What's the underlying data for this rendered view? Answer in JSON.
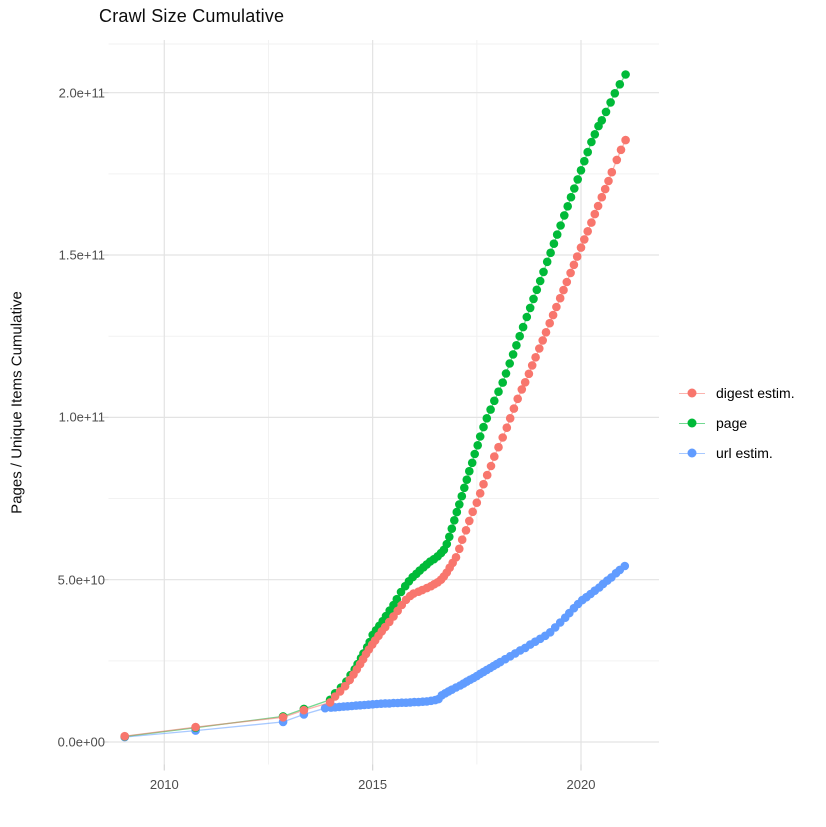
{
  "title": "Crawl Size Cumulative",
  "y_axis_title": "Pages / Unique Items Cumulative",
  "colors": {
    "background": "#ffffff",
    "grid_major": "#e3e3e3",
    "grid_minor": "#f2f2f2",
    "tick_mark": "#d5d5d5",
    "tick_text": "#4d4d4d",
    "digest": "#F8766D",
    "page": "#00BA38",
    "url": "#619CFF"
  },
  "chart_data": {
    "type": "scatter",
    "title": "Crawl Size Cumulative",
    "xlabel": "",
    "ylabel": "Pages / Unique Items Cumulative",
    "legend_position": "right",
    "grid": "on",
    "x_axis": {
      "tick_values": [
        2010,
        2015,
        2020
      ],
      "tick_labels": [
        "2010",
        "2015",
        "2020"
      ],
      "minor_tick_values": [
        2012.5,
        2017.5
      ],
      "range": [
        2008.72,
        2021.87
      ]
    },
    "y_axis": {
      "unit": "1e10",
      "tick_values": [
        0,
        5,
        10,
        15,
        20
      ],
      "tick_labels": [
        "0.0e+00",
        "5.0e+10",
        "1.0e+11",
        "1.5e+11",
        "2.0e+11"
      ],
      "minor_tick_values": [
        2.5,
        7.5,
        12.5,
        17.5,
        21.5
      ],
      "range": [
        -0.7,
        21.6
      ]
    },
    "series": [
      {
        "name": "url estim.",
        "legend_label": "url estim.",
        "color_key": "url",
        "points": [
          [
            2009.05,
            0.15
          ],
          [
            2010.75,
            0.35
          ],
          [
            2012.85,
            0.62
          ],
          [
            2013.35,
            0.85
          ],
          [
            2013.86,
            1.04
          ],
          [
            2014.0,
            1.06
          ],
          [
            2014.1,
            1.07
          ],
          [
            2014.2,
            1.08
          ],
          [
            2014.3,
            1.09
          ],
          [
            2014.4,
            1.1
          ],
          [
            2014.5,
            1.11
          ],
          [
            2014.6,
            1.12
          ],
          [
            2014.7,
            1.13
          ],
          [
            2014.8,
            1.14
          ],
          [
            2014.9,
            1.15
          ],
          [
            2015.0,
            1.16
          ],
          [
            2015.1,
            1.17
          ],
          [
            2015.2,
            1.18
          ],
          [
            2015.3,
            1.19
          ],
          [
            2015.4,
            1.19
          ],
          [
            2015.5,
            1.2
          ],
          [
            2015.6,
            1.2
          ],
          [
            2015.7,
            1.21
          ],
          [
            2015.8,
            1.21
          ],
          [
            2015.9,
            1.22
          ],
          [
            2016.0,
            1.23
          ],
          [
            2016.1,
            1.23
          ],
          [
            2016.2,
            1.24
          ],
          [
            2016.3,
            1.25
          ],
          [
            2016.4,
            1.27
          ],
          [
            2016.5,
            1.29
          ],
          [
            2016.58,
            1.32
          ],
          [
            2016.66,
            1.44
          ],
          [
            2016.74,
            1.5
          ],
          [
            2016.82,
            1.56
          ],
          [
            2016.9,
            1.61
          ],
          [
            2017.0,
            1.68
          ],
          [
            2017.1,
            1.74
          ],
          [
            2017.18,
            1.8
          ],
          [
            2017.26,
            1.86
          ],
          [
            2017.34,
            1.92
          ],
          [
            2017.42,
            1.97
          ],
          [
            2017.5,
            2.03
          ],
          [
            2017.58,
            2.1
          ],
          [
            2017.66,
            2.16
          ],
          [
            2017.74,
            2.22
          ],
          [
            2017.82,
            2.28
          ],
          [
            2017.9,
            2.34
          ],
          [
            2017.98,
            2.4
          ],
          [
            2018.06,
            2.46
          ],
          [
            2018.18,
            2.55
          ],
          [
            2018.3,
            2.64
          ],
          [
            2018.42,
            2.73
          ],
          [
            2018.54,
            2.82
          ],
          [
            2018.66,
            2.9
          ],
          [
            2018.78,
            3.0
          ],
          [
            2018.9,
            3.09
          ],
          [
            2019.02,
            3.18
          ],
          [
            2019.14,
            3.27
          ],
          [
            2019.26,
            3.38
          ],
          [
            2019.38,
            3.53
          ],
          [
            2019.5,
            3.68
          ],
          [
            2019.62,
            3.83
          ],
          [
            2019.72,
            3.97
          ],
          [
            2019.83,
            4.12
          ],
          [
            2019.93,
            4.25
          ],
          [
            2020.03,
            4.37
          ],
          [
            2020.13,
            4.46
          ],
          [
            2020.23,
            4.56
          ],
          [
            2020.33,
            4.66
          ],
          [
            2020.44,
            4.76
          ],
          [
            2020.53,
            4.87
          ],
          [
            2020.63,
            4.97
          ],
          [
            2020.73,
            5.07
          ],
          [
            2020.84,
            5.2
          ],
          [
            2020.93,
            5.3
          ],
          [
            2021.05,
            5.42
          ]
        ]
      },
      {
        "name": "page",
        "legend_label": "page",
        "color_key": "page",
        "points": [
          [
            2009.05,
            0.17
          ],
          [
            2010.75,
            0.44
          ],
          [
            2012.85,
            0.79
          ],
          [
            2013.35,
            1.02
          ],
          [
            2013.98,
            1.3
          ],
          [
            2014.1,
            1.5
          ],
          [
            2014.24,
            1.68
          ],
          [
            2014.37,
            1.86
          ],
          [
            2014.47,
            2.06
          ],
          [
            2014.57,
            2.24
          ],
          [
            2014.64,
            2.4
          ],
          [
            2014.72,
            2.58
          ],
          [
            2014.78,
            2.73
          ],
          [
            2014.87,
            2.92
          ],
          [
            2014.93,
            3.08
          ],
          [
            2015.0,
            3.3
          ],
          [
            2015.08,
            3.44
          ],
          [
            2015.16,
            3.58
          ],
          [
            2015.24,
            3.72
          ],
          [
            2015.32,
            3.88
          ],
          [
            2015.41,
            4.05
          ],
          [
            2015.5,
            4.22
          ],
          [
            2015.58,
            4.4
          ],
          [
            2015.68,
            4.62
          ],
          [
            2015.78,
            4.8
          ],
          [
            2015.87,
            4.95
          ],
          [
            2015.96,
            5.08
          ],
          [
            2016.05,
            5.18
          ],
          [
            2016.13,
            5.28
          ],
          [
            2016.22,
            5.38
          ],
          [
            2016.3,
            5.47
          ],
          [
            2016.38,
            5.56
          ],
          [
            2016.47,
            5.63
          ],
          [
            2016.56,
            5.72
          ],
          [
            2016.64,
            5.82
          ],
          [
            2016.71,
            5.92
          ],
          [
            2016.78,
            6.1
          ],
          [
            2016.84,
            6.32
          ],
          [
            2016.9,
            6.57
          ],
          [
            2016.96,
            6.83
          ],
          [
            2017.02,
            7.08
          ],
          [
            2017.08,
            7.32
          ],
          [
            2017.14,
            7.57
          ],
          [
            2017.2,
            7.83
          ],
          [
            2017.26,
            8.08
          ],
          [
            2017.32,
            8.34
          ],
          [
            2017.39,
            8.6
          ],
          [
            2017.45,
            8.87
          ],
          [
            2017.52,
            9.14
          ],
          [
            2017.58,
            9.41
          ],
          [
            2017.66,
            9.7
          ],
          [
            2017.74,
            9.97
          ],
          [
            2017.83,
            10.24
          ],
          [
            2017.92,
            10.51
          ],
          [
            2018.02,
            10.79
          ],
          [
            2018.12,
            11.07
          ],
          [
            2018.2,
            11.35
          ],
          [
            2018.29,
            11.66
          ],
          [
            2018.37,
            11.94
          ],
          [
            2018.45,
            12.22
          ],
          [
            2018.53,
            12.5
          ],
          [
            2018.61,
            12.78
          ],
          [
            2018.7,
            13.09
          ],
          [
            2018.78,
            13.37
          ],
          [
            2018.86,
            13.65
          ],
          [
            2018.94,
            13.93
          ],
          [
            2019.02,
            14.2
          ],
          [
            2019.1,
            14.48
          ],
          [
            2019.19,
            14.79
          ],
          [
            2019.27,
            15.07
          ],
          [
            2019.35,
            15.35
          ],
          [
            2019.43,
            15.63
          ],
          [
            2019.51,
            15.91
          ],
          [
            2019.6,
            16.22
          ],
          [
            2019.68,
            16.5
          ],
          [
            2019.76,
            16.78
          ],
          [
            2019.84,
            17.05
          ],
          [
            2019.92,
            17.33
          ],
          [
            2020.0,
            17.61
          ],
          [
            2020.08,
            17.89
          ],
          [
            2020.16,
            18.17
          ],
          [
            2020.25,
            18.48
          ],
          [
            2020.33,
            18.72
          ],
          [
            2020.42,
            18.97
          ],
          [
            2020.5,
            19.15
          ],
          [
            2020.6,
            19.41
          ],
          [
            2020.71,
            19.7
          ],
          [
            2020.81,
            19.98
          ],
          [
            2020.93,
            20.26
          ],
          [
            2021.07,
            20.56
          ]
        ]
      },
      {
        "name": "digest estim.",
        "legend_label": "digest estim.",
        "color_key": "digest",
        "points": [
          [
            2009.05,
            0.18
          ],
          [
            2010.75,
            0.46
          ],
          [
            2012.85,
            0.76
          ],
          [
            2013.35,
            0.98
          ],
          [
            2013.98,
            1.22
          ],
          [
            2014.1,
            1.4
          ],
          [
            2014.22,
            1.56
          ],
          [
            2014.34,
            1.72
          ],
          [
            2014.45,
            1.91
          ],
          [
            2014.54,
            2.08
          ],
          [
            2014.62,
            2.24
          ],
          [
            2014.7,
            2.4
          ],
          [
            2014.77,
            2.55
          ],
          [
            2014.84,
            2.71
          ],
          [
            2014.91,
            2.85
          ],
          [
            2014.99,
            3.0
          ],
          [
            2015.06,
            3.13
          ],
          [
            2015.14,
            3.27
          ],
          [
            2015.22,
            3.41
          ],
          [
            2015.3,
            3.54
          ],
          [
            2015.4,
            3.7
          ],
          [
            2015.5,
            3.87
          ],
          [
            2015.6,
            4.04
          ],
          [
            2015.7,
            4.22
          ],
          [
            2015.8,
            4.38
          ],
          [
            2015.9,
            4.5
          ],
          [
            2015.98,
            4.57
          ],
          [
            2016.1,
            4.63
          ],
          [
            2016.19,
            4.68
          ],
          [
            2016.3,
            4.74
          ],
          [
            2016.4,
            4.8
          ],
          [
            2016.48,
            4.86
          ],
          [
            2016.56,
            4.92
          ],
          [
            2016.64,
            5.0
          ],
          [
            2016.71,
            5.1
          ],
          [
            2016.78,
            5.22
          ],
          [
            2016.85,
            5.37
          ],
          [
            2016.92,
            5.52
          ],
          [
            2017.0,
            5.69
          ],
          [
            2017.08,
            5.95
          ],
          [
            2017.15,
            6.23
          ],
          [
            2017.24,
            6.52
          ],
          [
            2017.32,
            6.81
          ],
          [
            2017.4,
            7.09
          ],
          [
            2017.5,
            7.37
          ],
          [
            2017.58,
            7.66
          ],
          [
            2017.66,
            7.94
          ],
          [
            2017.75,
            8.22
          ],
          [
            2017.84,
            8.5
          ],
          [
            2017.92,
            8.79
          ],
          [
            2018.02,
            9.08
          ],
          [
            2018.12,
            9.38
          ],
          [
            2018.22,
            9.68
          ],
          [
            2018.3,
            9.97
          ],
          [
            2018.39,
            10.27
          ],
          [
            2018.48,
            10.57
          ],
          [
            2018.58,
            10.86
          ],
          [
            2018.66,
            11.08
          ],
          [
            2018.75,
            11.34
          ],
          [
            2018.83,
            11.6
          ],
          [
            2018.91,
            11.85
          ],
          [
            2019.0,
            12.12
          ],
          [
            2019.08,
            12.37
          ],
          [
            2019.16,
            12.62
          ],
          [
            2019.25,
            12.9
          ],
          [
            2019.33,
            13.15
          ],
          [
            2019.41,
            13.4
          ],
          [
            2019.5,
            13.67
          ],
          [
            2019.58,
            13.92
          ],
          [
            2019.66,
            14.17
          ],
          [
            2019.75,
            14.45
          ],
          [
            2019.83,
            14.7
          ],
          [
            2019.91,
            14.95
          ],
          [
            2020.0,
            15.23
          ],
          [
            2020.08,
            15.48
          ],
          [
            2020.16,
            15.73
          ],
          [
            2020.25,
            16.0
          ],
          [
            2020.33,
            16.26
          ],
          [
            2020.41,
            16.51
          ],
          [
            2020.5,
            16.78
          ],
          [
            2020.58,
            17.03
          ],
          [
            2020.66,
            17.28
          ],
          [
            2020.74,
            17.55
          ],
          [
            2020.86,
            17.93
          ],
          [
            2020.96,
            18.24
          ],
          [
            2021.07,
            18.54
          ]
        ]
      }
    ],
    "legend_order": [
      "digest estim.",
      "page",
      "url estim."
    ]
  }
}
